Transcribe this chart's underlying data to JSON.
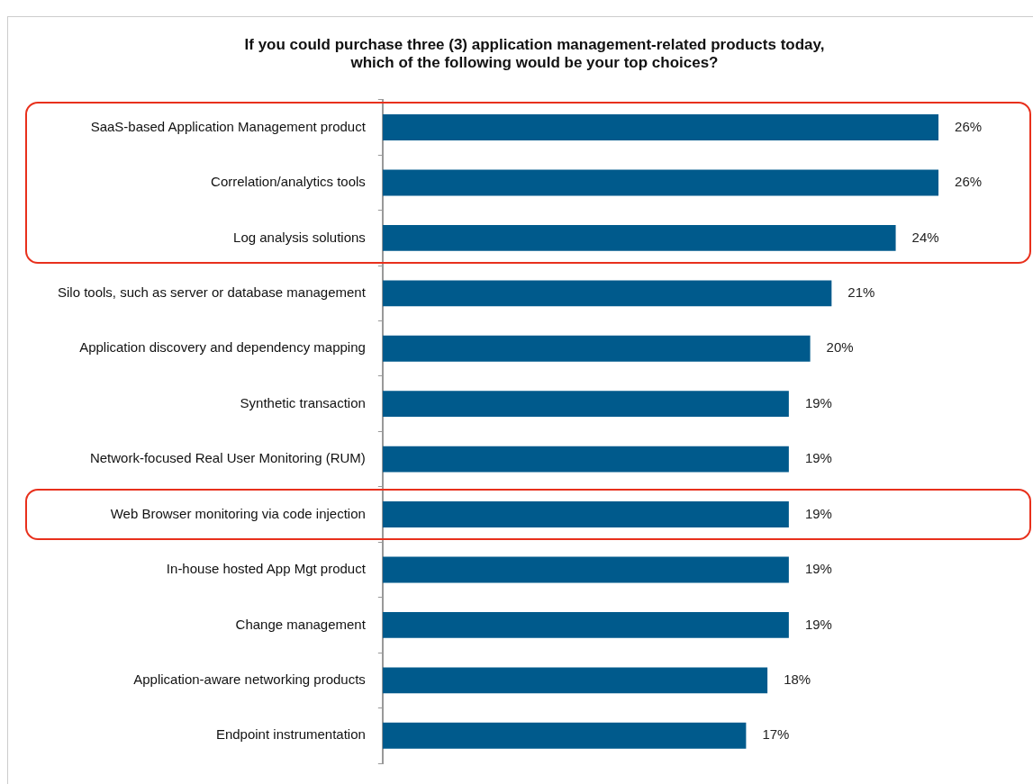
{
  "chart_data": {
    "type": "bar",
    "orientation": "horizontal",
    "title": "If you could purchase three (3) application management-related products today,\nwhich of the following would be your top choices?",
    "categories": [
      "SaaS-based Application Management product",
      "Correlation/analytics tools",
      "Log analysis solutions",
      "Silo tools, such as server or database management",
      "Application discovery and dependency mapping",
      "Synthetic transaction",
      "Network-focused Real User Monitoring (RUM)",
      "Web Browser monitoring via code injection",
      "In-house hosted App Mgt product",
      "Change management",
      "Application-aware networking products",
      "Endpoint instrumentation"
    ],
    "values": [
      26,
      26,
      24,
      21,
      20,
      19,
      19,
      19,
      19,
      19,
      18,
      17
    ],
    "value_labels": [
      "26%",
      "26%",
      "24%",
      "21%",
      "20%",
      "19%",
      "19%",
      "19%",
      "19%",
      "19%",
      "18%",
      "17%"
    ],
    "color": "#005a8c"
  }
}
